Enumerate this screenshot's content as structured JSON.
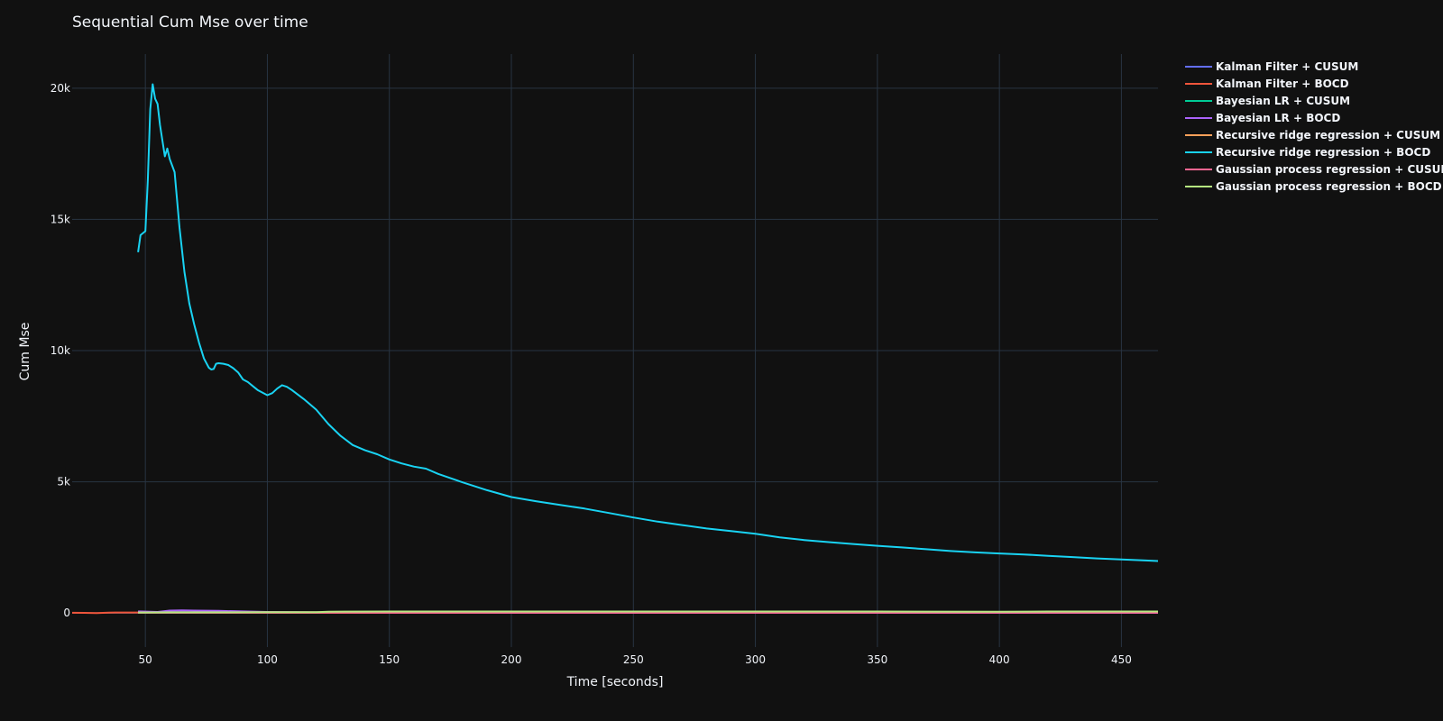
{
  "chart_data": {
    "type": "line",
    "title": "Sequential Cum Mse over time",
    "xlabel": "Time [seconds]",
    "ylabel": "Cum Mse",
    "xlim": [
      20,
      465
    ],
    "ylim": [
      -1300,
      21300
    ],
    "x_ticks": [
      50,
      100,
      150,
      200,
      250,
      300,
      350,
      400,
      450
    ],
    "x_tick_labels": [
      "50",
      "100",
      "150",
      "200",
      "250",
      "300",
      "350",
      "400",
      "450"
    ],
    "y_ticks": [
      0,
      5000,
      10000,
      15000,
      20000
    ],
    "y_tick_labels": [
      "0",
      "5k",
      "10k",
      "15k",
      "20k"
    ],
    "grid": true,
    "legend_position": "top-right outside",
    "series": [
      {
        "name": "Kalman Filter + CUSUM",
        "color": "#636efa",
        "points": [
          [
            47,
            40
          ],
          [
            60,
            30
          ],
          [
            100,
            20
          ],
          [
            150,
            25
          ],
          [
            200,
            20
          ],
          [
            250,
            20
          ],
          [
            300,
            25
          ],
          [
            350,
            25
          ],
          [
            400,
            20
          ],
          [
            465,
            20
          ]
        ]
      },
      {
        "name": "Kalman Filter + BOCD",
        "color": "#ef553b",
        "points": [
          [
            20,
            10
          ],
          [
            25,
            5
          ],
          [
            30,
            0
          ],
          [
            35,
            15
          ],
          [
            40,
            20
          ],
          [
            45,
            20
          ],
          [
            50,
            20
          ],
          [
            60,
            15
          ],
          [
            80,
            10
          ],
          [
            100,
            10
          ],
          [
            150,
            10
          ],
          [
            200,
            10
          ],
          [
            300,
            10
          ],
          [
            400,
            10
          ],
          [
            465,
            10
          ]
        ]
      },
      {
        "name": "Bayesian LR + CUSUM",
        "color": "#00cc96",
        "points": [
          [
            47,
            20
          ],
          [
            60,
            15
          ],
          [
            100,
            20
          ],
          [
            150,
            25
          ],
          [
            200,
            25
          ],
          [
            250,
            25
          ],
          [
            300,
            25
          ],
          [
            350,
            25
          ],
          [
            400,
            25
          ],
          [
            465,
            25
          ]
        ]
      },
      {
        "name": "Bayesian LR + BOCD",
        "color": "#ab63fa",
        "points": [
          [
            47,
            60
          ],
          [
            55,
            40
          ],
          [
            60,
            90
          ],
          [
            65,
            100
          ],
          [
            70,
            90
          ],
          [
            80,
            80
          ],
          [
            90,
            60
          ],
          [
            100,
            40
          ],
          [
            120,
            25
          ],
          [
            150,
            20
          ],
          [
            200,
            15
          ],
          [
            300,
            15
          ],
          [
            400,
            10
          ],
          [
            465,
            10
          ]
        ]
      },
      {
        "name": "Recursive ridge regression + CUSUM",
        "color": "#ffa15a",
        "points": [
          [
            47,
            20
          ],
          [
            60,
            20
          ],
          [
            100,
            25
          ],
          [
            150,
            25
          ],
          [
            200,
            25
          ],
          [
            300,
            25
          ],
          [
            400,
            25
          ],
          [
            465,
            25
          ]
        ]
      },
      {
        "name": "Recursive ridge regression + BOCD",
        "color": "#19d3f3",
        "points": [
          [
            47,
            13750
          ],
          [
            48,
            14400
          ],
          [
            50,
            14550
          ],
          [
            51,
            16500
          ],
          [
            52,
            19200
          ],
          [
            53,
            20150
          ],
          [
            54,
            19600
          ],
          [
            55,
            19400
          ],
          [
            56,
            18600
          ],
          [
            57,
            18000
          ],
          [
            58,
            17400
          ],
          [
            59,
            17700
          ],
          [
            60,
            17300
          ],
          [
            62,
            16800
          ],
          [
            64,
            14700
          ],
          [
            66,
            13000
          ],
          [
            68,
            11800
          ],
          [
            70,
            11000
          ],
          [
            72,
            10300
          ],
          [
            74,
            9700
          ],
          [
            76,
            9350
          ],
          [
            77,
            9280
          ],
          [
            78,
            9300
          ],
          [
            79,
            9500
          ],
          [
            80,
            9520
          ],
          [
            82,
            9500
          ],
          [
            84,
            9450
          ],
          [
            86,
            9330
          ],
          [
            88,
            9170
          ],
          [
            90,
            8900
          ],
          [
            92,
            8800
          ],
          [
            94,
            8650
          ],
          [
            96,
            8500
          ],
          [
            98,
            8400
          ],
          [
            100,
            8300
          ],
          [
            102,
            8380
          ],
          [
            104,
            8550
          ],
          [
            106,
            8680
          ],
          [
            108,
            8620
          ],
          [
            110,
            8500
          ],
          [
            115,
            8150
          ],
          [
            120,
            7750
          ],
          [
            125,
            7200
          ],
          [
            130,
            6750
          ],
          [
            135,
            6400
          ],
          [
            140,
            6200
          ],
          [
            145,
            6050
          ],
          [
            150,
            5850
          ],
          [
            155,
            5700
          ],
          [
            160,
            5580
          ],
          [
            165,
            5500
          ],
          [
            170,
            5300
          ],
          [
            180,
            4980
          ],
          [
            190,
            4680
          ],
          [
            200,
            4420
          ],
          [
            210,
            4260
          ],
          [
            220,
            4120
          ],
          [
            230,
            3980
          ],
          [
            240,
            3810
          ],
          [
            250,
            3640
          ],
          [
            260,
            3480
          ],
          [
            270,
            3350
          ],
          [
            280,
            3220
          ],
          [
            290,
            3120
          ],
          [
            300,
            3020
          ],
          [
            310,
            2880
          ],
          [
            320,
            2780
          ],
          [
            330,
            2700
          ],
          [
            340,
            2630
          ],
          [
            350,
            2560
          ],
          [
            360,
            2500
          ],
          [
            370,
            2430
          ],
          [
            380,
            2360
          ],
          [
            390,
            2310
          ],
          [
            400,
            2270
          ],
          [
            410,
            2230
          ],
          [
            420,
            2180
          ],
          [
            430,
            2130
          ],
          [
            440,
            2080
          ],
          [
            450,
            2040
          ],
          [
            460,
            2000
          ],
          [
            465,
            1980
          ]
        ]
      },
      {
        "name": "Gaussian process regression + CUSUM",
        "color": "#ff6692",
        "points": [
          [
            47,
            15
          ],
          [
            60,
            15
          ],
          [
            100,
            15
          ],
          [
            150,
            15
          ],
          [
            200,
            15
          ],
          [
            300,
            15
          ],
          [
            400,
            15
          ],
          [
            465,
            15
          ]
        ]
      },
      {
        "name": "Gaussian process regression + BOCD",
        "color": "#b6e880",
        "points": [
          [
            47,
            20
          ],
          [
            60,
            25
          ],
          [
            100,
            30
          ],
          [
            120,
            30
          ],
          [
            125,
            50
          ],
          [
            150,
            55
          ],
          [
            200,
            55
          ],
          [
            250,
            55
          ],
          [
            300,
            55
          ],
          [
            350,
            55
          ],
          [
            400,
            50
          ],
          [
            420,
            55
          ],
          [
            465,
            55
          ]
        ]
      }
    ]
  }
}
